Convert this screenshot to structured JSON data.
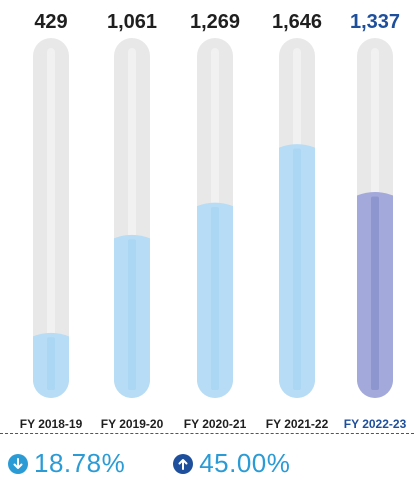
{
  "chart_data": {
    "type": "bar",
    "categories": [
      "FY 2018-19",
      "FY 2019-20",
      "FY 2020-21",
      "FY 2021-22",
      "FY 2022-23"
    ],
    "values": [
      429,
      1061,
      1269,
      1646,
      1337
    ],
    "value_labels": [
      "429",
      "1,061",
      "1,269",
      "1,646",
      "1,337"
    ],
    "ylim": [
      0,
      2320
    ],
    "highlight_index": 4
  },
  "colors": {
    "tube": "#e8e8e8",
    "fill": "#b7dcf6",
    "fill_stripe": "#a3d2f3",
    "highlight_fill": "#a3a9da",
    "highlight_stripe": "#7e87c7",
    "label_dark": "#1f1f1f",
    "label_highlight": "#1e4f9c",
    "down_color": "#2b9bd6",
    "up_color": "#1e4f9c",
    "stat_text": "#2b9bd6"
  },
  "stats": [
    {
      "icon": "arrow-down-circle-icon",
      "value": "18.78%"
    },
    {
      "icon": "arrow-up-circle-icon",
      "value": "45.00%"
    }
  ]
}
